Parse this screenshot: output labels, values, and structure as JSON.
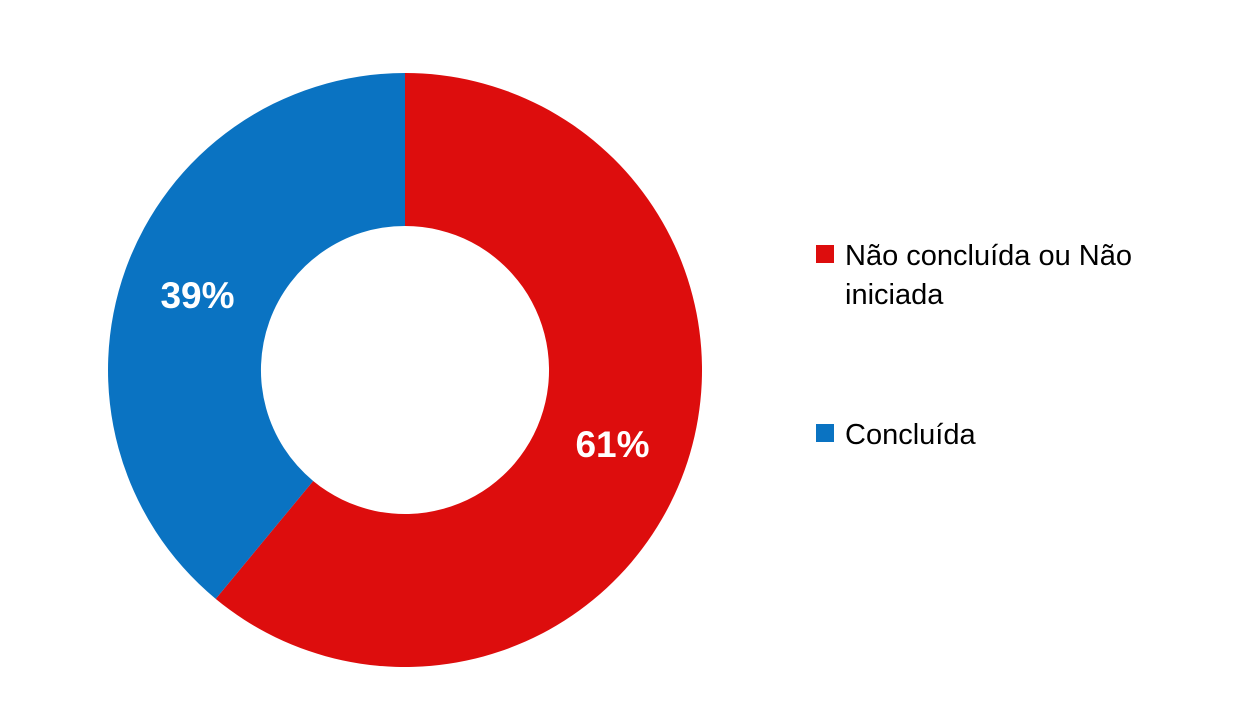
{
  "chart_data": {
    "type": "pie",
    "subtype": "donut",
    "title": "",
    "direction": "clockwise",
    "start_angle_deg": 0,
    "inner_radius_ratio": 0.485,
    "legend_position": "right",
    "label_color": "#FFFFFF",
    "background_color": "#FFFFFF",
    "slices": [
      {
        "label": "Não concluída ou Não iniciada",
        "value": 61,
        "display": "61%",
        "color": "#DD0D0D"
      },
      {
        "label": "Concluída",
        "value": 39,
        "display": "39%",
        "color": "#0A73C2"
      }
    ]
  },
  "legend": {
    "items": [
      {
        "label": "Não concluída ou Não iniciada",
        "color": "#DD0D0D"
      },
      {
        "label": "Concluída",
        "color": "#0A73C2"
      }
    ]
  }
}
